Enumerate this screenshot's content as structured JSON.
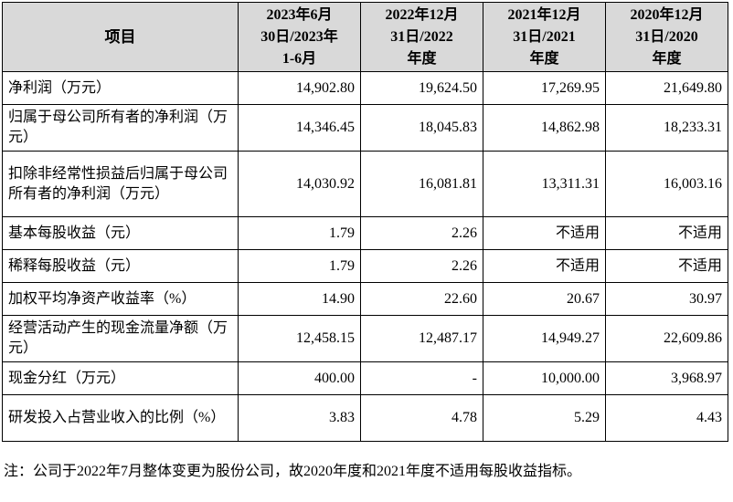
{
  "table": {
    "headers": [
      "项目",
      "2023年6月\n30日/2023年\n1-6月",
      "2022年12月\n31日/2022\n年度",
      "2021年12月\n31日/2021\n年度",
      "2020年12月\n31日/2020\n年度"
    ],
    "rows": [
      {
        "label": "净利润（万元）",
        "values": [
          "14,902.80",
          "19,624.50",
          "17,269.95",
          "21,649.80"
        ]
      },
      {
        "label": "归属于母公司所有者的净利润（万元）",
        "values": [
          "14,346.45",
          "18,045.83",
          "14,862.98",
          "18,233.31"
        ]
      },
      {
        "label": "扣除非经常性损益后归属于母公司所有者的净利润（万元）",
        "values": [
          "14,030.92",
          "16,081.81",
          "13,311.31",
          "16,003.16"
        ]
      },
      {
        "label": "基本每股收益（元）",
        "values": [
          "1.79",
          "2.26",
          "不适用",
          "不适用"
        ]
      },
      {
        "label": "稀释每股收益（元）",
        "values": [
          "1.79",
          "2.26",
          "不适用",
          "不适用"
        ]
      },
      {
        "label": "加权平均净资产收益率（%）",
        "values": [
          "14.90",
          "22.60",
          "20.67",
          "30.97"
        ]
      },
      {
        "label": "经营活动产生的现金流量净额（万元）",
        "values": [
          "12,458.15",
          "12,487.17",
          "14,949.27",
          "22,609.86"
        ]
      },
      {
        "label": "现金分红（万元）",
        "values": [
          "400.00",
          "-",
          "10,000.00",
          "3,968.97"
        ]
      },
      {
        "label": "研发投入占营业收入的比例（%）",
        "values": [
          "3.83",
          "4.78",
          "5.29",
          "4.43"
        ]
      }
    ]
  },
  "note": "注：公司于2022年7月整体变更为股份公司，故2020年度和2021年度不适用每股收益指标。"
}
